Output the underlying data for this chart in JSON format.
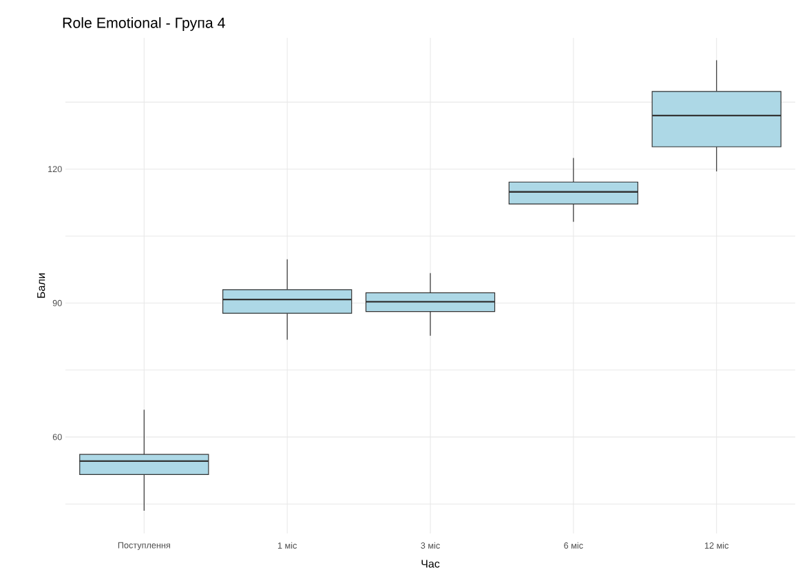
{
  "chart_data": {
    "type": "box",
    "title": "Role Emotional - Група 4",
    "xlabel": "Час",
    "ylabel": "Бали",
    "categories": [
      "Поступлення",
      "1 міс",
      "3 міс",
      "6 міс",
      "12 міс"
    ],
    "boxes": [
      {
        "low": 43.5,
        "q1": 51.6,
        "median": 54.6,
        "q3": 56.1,
        "high": 66.1
      },
      {
        "low": 81.8,
        "q1": 87.7,
        "median": 90.8,
        "q3": 93.0,
        "high": 99.8
      },
      {
        "low": 82.7,
        "q1": 88.1,
        "median": 90.3,
        "q3": 92.3,
        "high": 96.7
      },
      {
        "low": 108.2,
        "q1": 112.2,
        "median": 114.9,
        "q3": 117.1,
        "high": 122.5
      },
      {
        "low": 119.5,
        "q1": 125.0,
        "median": 132.0,
        "q3": 137.4,
        "high": 144.4
      }
    ],
    "color": "#add8e6",
    "ylim": [
      38.4,
      149.4
    ],
    "yticks": [
      {
        "value": 45,
        "label": null
      },
      60,
      {
        "value": 75,
        "label": null
      },
      90,
      {
        "value": 105,
        "label": null
      },
      120,
      {
        "value": 135,
        "label": null
      }
    ],
    "grid": true
  }
}
